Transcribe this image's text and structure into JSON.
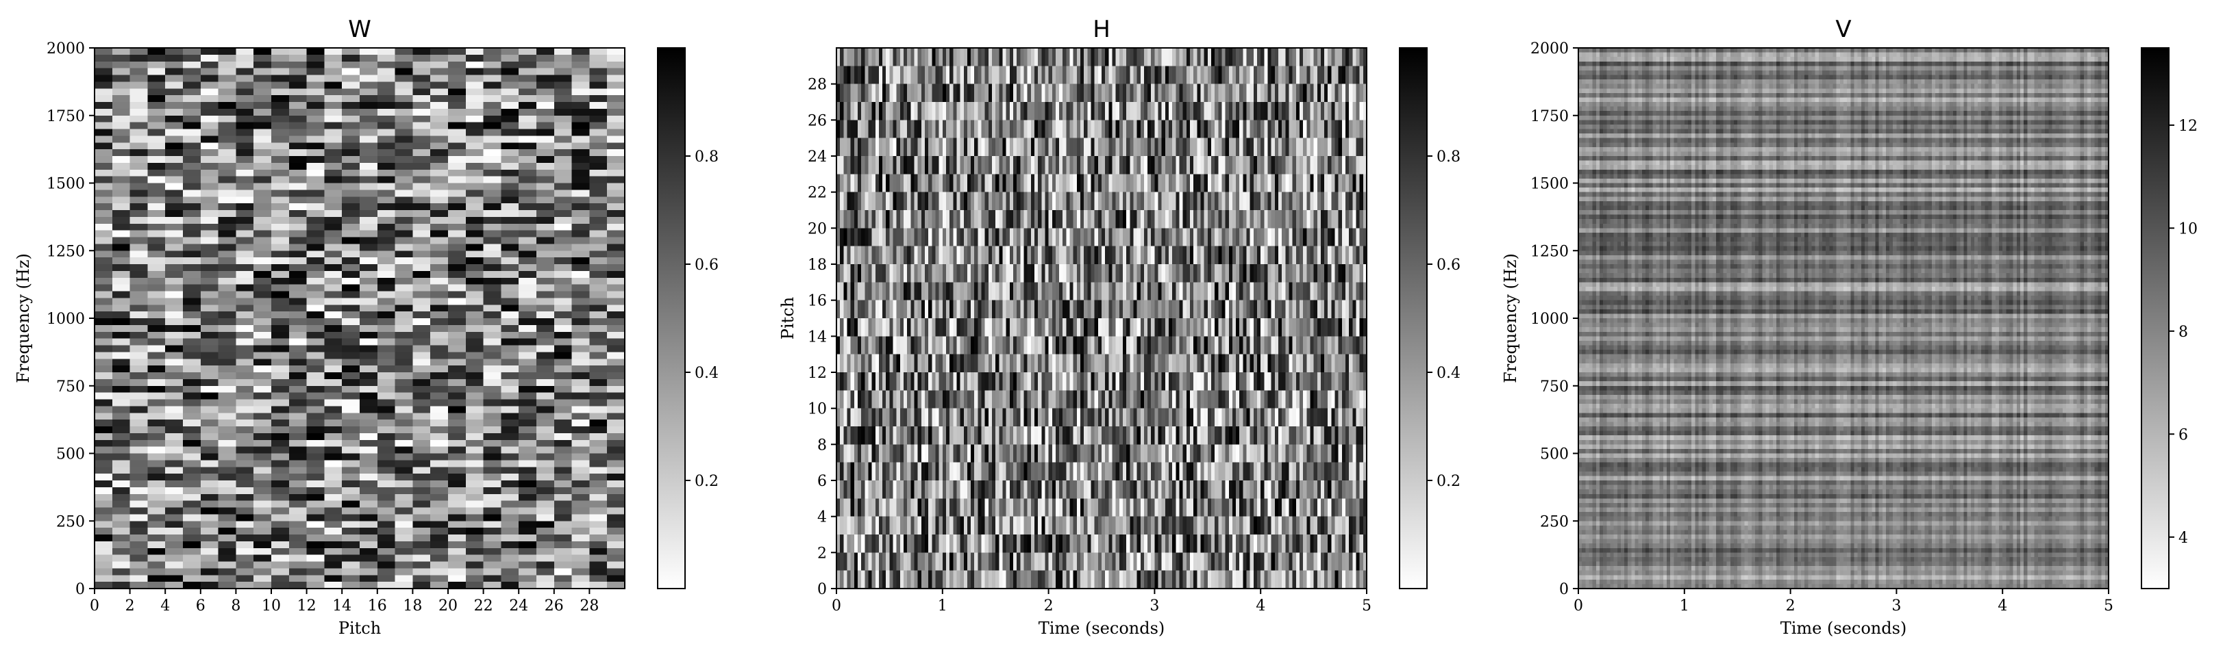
{
  "chart_data": [
    {
      "type": "heatmap",
      "title": "W",
      "xlabel": "Pitch",
      "ylabel": "Frequency (Hz)",
      "x_range": [
        0,
        30
      ],
      "y_range": [
        0,
        2000
      ],
      "x_ticks": [
        0,
        2,
        4,
        6,
        8,
        10,
        12,
        14,
        16,
        18,
        20,
        22,
        24,
        26,
        28
      ],
      "y_ticks": [
        0,
        250,
        500,
        750,
        1000,
        1250,
        1500,
        1750,
        2000
      ],
      "grid_cols": 30,
      "grid_rows": 80,
      "value_range": [
        0,
        1
      ],
      "colormap": "gray_r",
      "colorbar_ticks": [
        "0.2",
        "0.4",
        "0.6",
        "0.8"
      ],
      "colorbar_tick_values": [
        0.2,
        0.4,
        0.6,
        0.8
      ],
      "colorbar_range": [
        0,
        1
      ],
      "grid": false
    },
    {
      "type": "heatmap",
      "title": "H",
      "xlabel": "Time (seconds)",
      "ylabel": "Pitch",
      "x_range": [
        0,
        5
      ],
      "y_range": [
        0,
        30
      ],
      "x_ticks": [
        0,
        1,
        2,
        3,
        4,
        5
      ],
      "y_ticks": [
        0,
        2,
        4,
        6,
        8,
        10,
        12,
        14,
        16,
        18,
        20,
        22,
        24,
        26,
        28
      ],
      "grid_cols": 150,
      "grid_rows": 30,
      "value_range": [
        0,
        1
      ],
      "colormap": "gray_r",
      "colorbar_ticks": [
        "0.2",
        "0.4",
        "0.6",
        "0.8"
      ],
      "colorbar_tick_values": [
        0.2,
        0.4,
        0.6,
        0.8
      ],
      "colorbar_range": [
        0,
        1
      ],
      "grid": false
    },
    {
      "type": "heatmap",
      "title": "V",
      "xlabel": "Time (seconds)",
      "ylabel": "Frequency (Hz)",
      "x_range": [
        0,
        5
      ],
      "y_range": [
        0,
        2000
      ],
      "x_ticks": [
        0,
        1,
        2,
        3,
        4,
        5
      ],
      "y_ticks": [
        0,
        250,
        500,
        750,
        1000,
        1250,
        1500,
        1750,
        2000
      ],
      "grid_cols": 150,
      "grid_rows": 120,
      "value_range": [
        3,
        13.5
      ],
      "colormap": "gray_r",
      "colorbar_ticks": [
        "4",
        "6",
        "8",
        "10",
        "12"
      ],
      "colorbar_tick_values": [
        4,
        6,
        8,
        10,
        12
      ],
      "colorbar_range": [
        3,
        13.5
      ],
      "grid": false
    }
  ]
}
